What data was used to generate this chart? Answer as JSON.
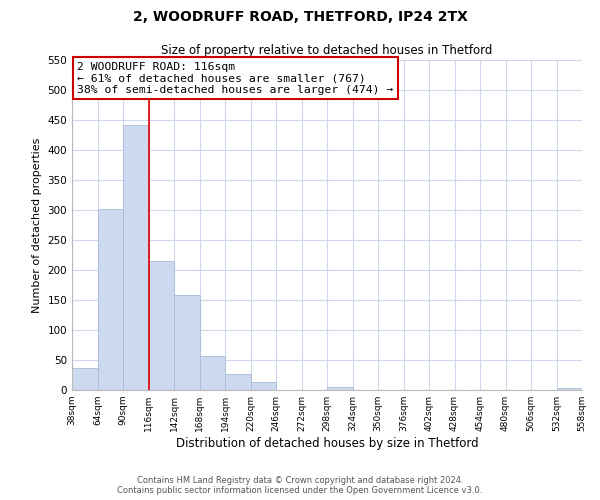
{
  "title": "2, WOODRUFF ROAD, THETFORD, IP24 2TX",
  "subtitle": "Size of property relative to detached houses in Thetford",
  "xlabel": "Distribution of detached houses by size in Thetford",
  "ylabel": "Number of detached properties",
  "bar_edges": [
    38,
    64,
    90,
    116,
    142,
    168,
    194,
    220,
    246,
    272,
    298,
    324,
    350,
    376,
    402,
    428,
    454,
    480,
    506,
    532,
    558
  ],
  "bar_heights": [
    37,
    302,
    442,
    215,
    158,
    57,
    27,
    13,
    0,
    0,
    5,
    0,
    0,
    0,
    0,
    0,
    0,
    0,
    0,
    3
  ],
  "bar_color": "#cdd9ee",
  "bar_edge_color": "#a8bcd8",
  "reference_line_x": 116,
  "reference_line_color": "#dd0000",
  "annotation_title": "2 WOODRUFF ROAD: 116sqm",
  "annotation_line1": "← 61% of detached houses are smaller (767)",
  "annotation_line2": "38% of semi-detached houses are larger (474) →",
  "annotation_box_color": "white",
  "annotation_box_edge_color": "#cc0000",
  "ylim": [
    0,
    550
  ],
  "yticks": [
    0,
    50,
    100,
    150,
    200,
    250,
    300,
    350,
    400,
    450,
    500,
    550
  ],
  "tick_labels": [
    "38sqm",
    "64sqm",
    "90sqm",
    "116sqm",
    "142sqm",
    "168sqm",
    "194sqm",
    "220sqm",
    "246sqm",
    "272sqm",
    "298sqm",
    "324sqm",
    "350sqm",
    "376sqm",
    "402sqm",
    "428sqm",
    "454sqm",
    "480sqm",
    "506sqm",
    "532sqm",
    "558sqm"
  ],
  "footer_line1": "Contains HM Land Registry data © Crown copyright and database right 2024.",
  "footer_line2": "Contains public sector information licensed under the Open Government Licence v3.0.",
  "background_color": "#ffffff",
  "grid_color": "#cdd8ec"
}
